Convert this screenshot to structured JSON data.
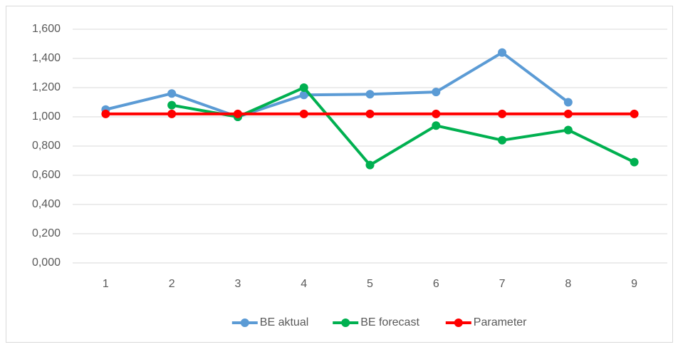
{
  "chart_data": {
    "type": "line",
    "categories": [
      "1",
      "2",
      "3",
      "4",
      "5",
      "6",
      "7",
      "8",
      "9"
    ],
    "series": [
      {
        "name": "BE aktual",
        "color": "#5b9bd5",
        "values": [
          1.05,
          1.16,
          1.0,
          1.15,
          1.155,
          1.17,
          1.44,
          1.1,
          null
        ]
      },
      {
        "name": "BE forecast",
        "color": "#00b050",
        "values": [
          null,
          1.08,
          1.0,
          1.2,
          0.67,
          0.94,
          0.84,
          0.91,
          0.69
        ]
      },
      {
        "name": "Parameter",
        "color": "#ff0000",
        "values": [
          1.02,
          1.02,
          1.02,
          1.02,
          1.02,
          1.02,
          1.02,
          1.02,
          1.02
        ]
      }
    ],
    "ylim": [
      0,
      1.6
    ],
    "yticks": [
      {
        "value": 0,
        "label": "0,000"
      },
      {
        "value": 0.2,
        "label": "0,200"
      },
      {
        "value": 0.4,
        "label": "0,400"
      },
      {
        "value": 0.6,
        "label": "0,600"
      },
      {
        "value": 0.8,
        "label": "0,800"
      },
      {
        "value": 1.0,
        "label": "1,000"
      },
      {
        "value": 1.2,
        "label": "1,200"
      },
      {
        "value": 1.4,
        "label": "1,400"
      },
      {
        "value": 1.6,
        "label": "1,600"
      }
    ],
    "grid": true,
    "legend": "bottom"
  }
}
